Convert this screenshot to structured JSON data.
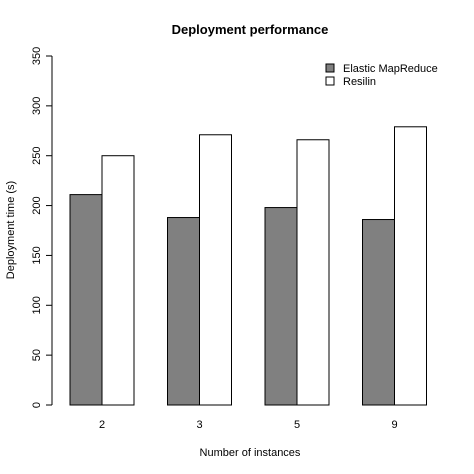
{
  "chart_data": {
    "type": "bar",
    "title": "Deployment performance",
    "xlabel": "Number of instances",
    "ylabel": "Deployment time (s)",
    "categories": [
      "2",
      "3",
      "5",
      "9"
    ],
    "series": [
      {
        "name": "Elastic MapReduce",
        "values": [
          211,
          188,
          198,
          186
        ],
        "color": "#808080"
      },
      {
        "name": "Resilin",
        "values": [
          250,
          271,
          266,
          279
        ],
        "color": "#ffffff"
      }
    ],
    "ylim": [
      0,
      350
    ],
    "yticks": [
      "0",
      "50",
      "100",
      "150",
      "200",
      "250",
      "300",
      "350"
    ],
    "legend_position": "top-right",
    "grid": false
  }
}
